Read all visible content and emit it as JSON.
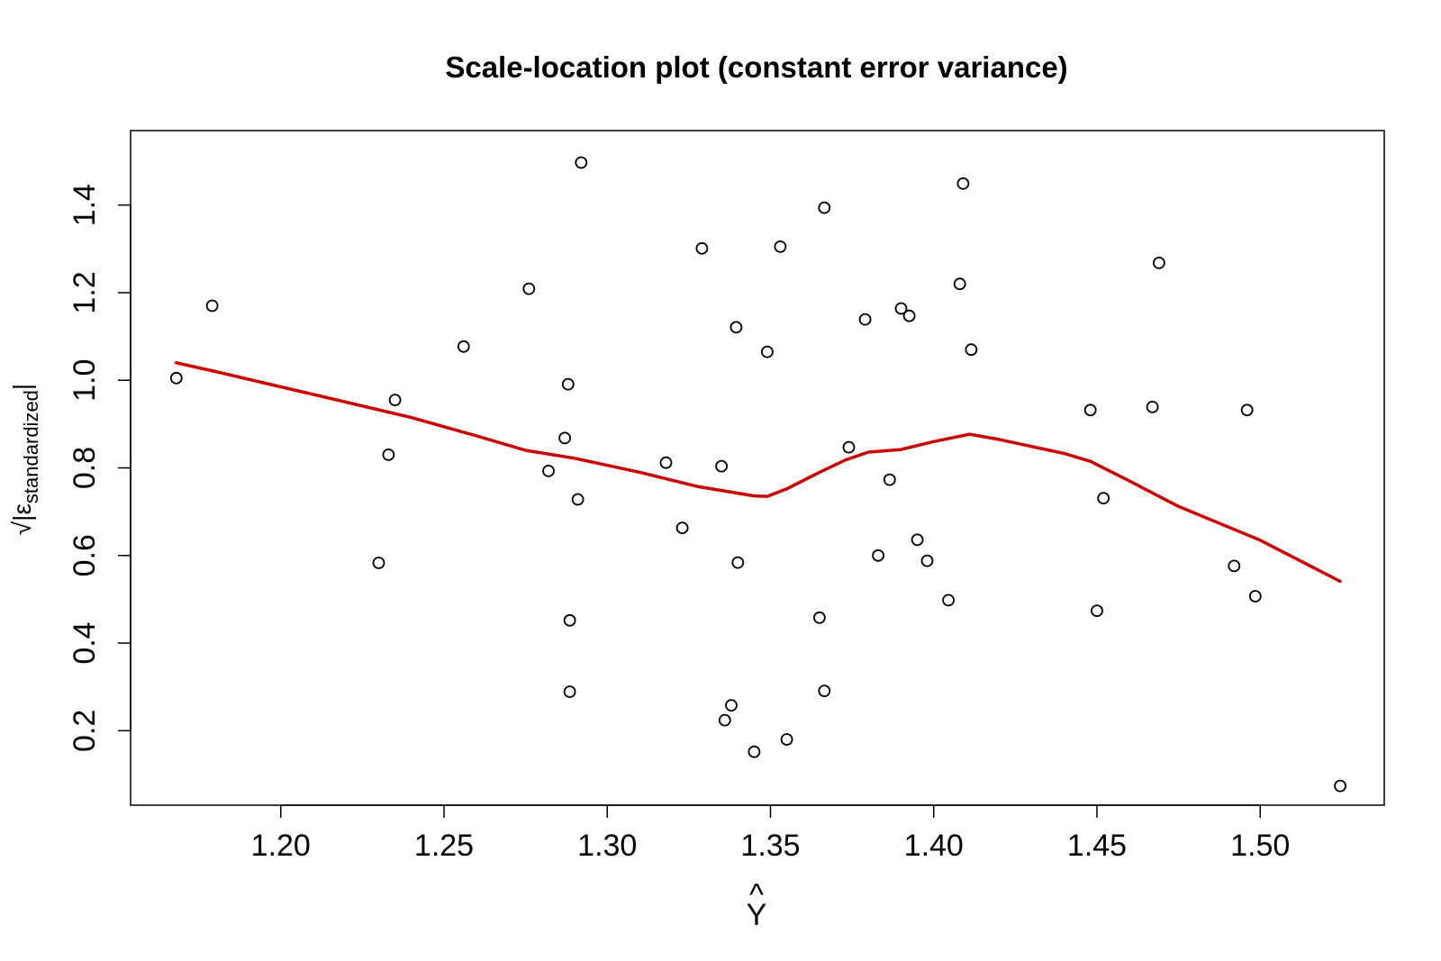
{
  "chart_data": {
    "type": "scatter",
    "title": "Scale-location plot (constant error variance)",
    "xlabel": "Y",
    "xlabel_hat": "^",
    "ylabel": {
      "radical": "√",
      "base": "|ε",
      "subscript": "standardized",
      "suffix": "|"
    },
    "xlim": [
      1.154,
      1.538
    ],
    "ylim": [
      0.03,
      1.57
    ],
    "x_ticks": [
      1.2,
      1.25,
      1.3,
      1.35,
      1.4,
      1.45,
      1.5
    ],
    "x_tick_labels": [
      "1.20",
      "1.25",
      "1.30",
      "1.35",
      "1.40",
      "1.45",
      "1.50"
    ],
    "y_ticks": [
      0.2,
      0.4,
      0.6,
      0.8,
      1.0,
      1.2,
      1.4
    ],
    "y_tick_labels": [
      "0.2",
      "0.4",
      "0.6",
      "0.8",
      "1.0",
      "1.2",
      "1.4"
    ],
    "grid": false,
    "series": [
      {
        "kind": "points",
        "color": "#000000",
        "points": [
          [
            1.168,
            1.005
          ],
          [
            1.179,
            1.17
          ],
          [
            1.23,
            0.583
          ],
          [
            1.233,
            0.83
          ],
          [
            1.235,
            0.955
          ],
          [
            1.256,
            1.077
          ],
          [
            1.276,
            1.209
          ],
          [
            1.282,
            0.793
          ],
          [
            1.287,
            0.868
          ],
          [
            1.288,
            0.991
          ],
          [
            1.2885,
            0.452
          ],
          [
            1.2885,
            0.289
          ],
          [
            1.291,
            0.728
          ],
          [
            1.292,
            1.497
          ],
          [
            1.318,
            0.812
          ],
          [
            1.323,
            0.663
          ],
          [
            1.329,
            1.301
          ],
          [
            1.335,
            0.804
          ],
          [
            1.336,
            0.224
          ],
          [
            1.338,
            0.258
          ],
          [
            1.3395,
            1.121
          ],
          [
            1.34,
            0.584
          ],
          [
            1.345,
            0.152
          ],
          [
            1.349,
            1.065
          ],
          [
            1.353,
            1.305
          ],
          [
            1.355,
            0.18
          ],
          [
            1.365,
            0.458
          ],
          [
            1.3665,
            0.291
          ],
          [
            1.3665,
            1.394
          ],
          [
            1.374,
            0.847
          ],
          [
            1.379,
            1.139
          ],
          [
            1.383,
            0.6
          ],
          [
            1.3865,
            0.773
          ],
          [
            1.39,
            1.164
          ],
          [
            1.3925,
            1.147
          ],
          [
            1.395,
            0.636
          ],
          [
            1.398,
            0.588
          ],
          [
            1.4045,
            0.498
          ],
          [
            1.408,
            1.22
          ],
          [
            1.409,
            1.449
          ],
          [
            1.4115,
            1.07
          ],
          [
            1.448,
            0.932
          ],
          [
            1.45,
            0.474
          ],
          [
            1.452,
            0.731
          ],
          [
            1.467,
            0.939
          ],
          [
            1.469,
            1.268
          ],
          [
            1.492,
            0.576
          ],
          [
            1.496,
            0.932
          ],
          [
            1.4985,
            0.507
          ],
          [
            1.5245,
            0.074
          ]
        ]
      },
      {
        "kind": "smoother",
        "color": "#cc0000",
        "points": [
          [
            1.168,
            1.04
          ],
          [
            1.18,
            1.02
          ],
          [
            1.2,
            0.985
          ],
          [
            1.22,
            0.95
          ],
          [
            1.24,
            0.915
          ],
          [
            1.26,
            0.873
          ],
          [
            1.275,
            0.84
          ],
          [
            1.29,
            0.822
          ],
          [
            1.31,
            0.79
          ],
          [
            1.328,
            0.757
          ],
          [
            1.345,
            0.736
          ],
          [
            1.349,
            0.735
          ],
          [
            1.355,
            0.752
          ],
          [
            1.365,
            0.79
          ],
          [
            1.373,
            0.818
          ],
          [
            1.38,
            0.836
          ],
          [
            1.39,
            0.842
          ],
          [
            1.4,
            0.86
          ],
          [
            1.411,
            0.877
          ],
          [
            1.42,
            0.865
          ],
          [
            1.44,
            0.833
          ],
          [
            1.448,
            0.815
          ],
          [
            1.46,
            0.77
          ],
          [
            1.475,
            0.712
          ],
          [
            1.5,
            0.635
          ],
          [
            1.5245,
            0.541
          ]
        ]
      }
    ]
  }
}
